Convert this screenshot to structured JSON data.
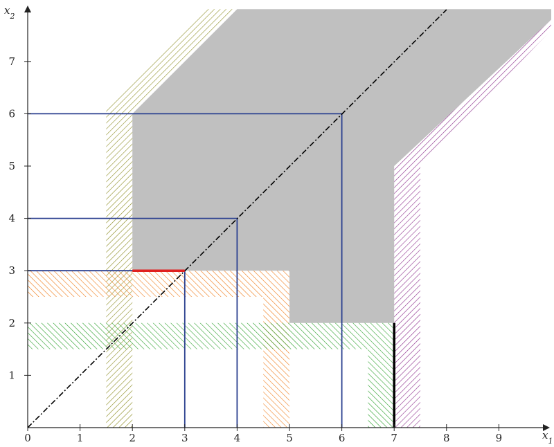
{
  "figure": {
    "axes": {
      "x_label": "x1",
      "y_label": "x2",
      "x_range": [
        0,
        10
      ],
      "y_range": [
        0,
        8
      ],
      "x_ticks": [
        0,
        1,
        2,
        3,
        4,
        5,
        6,
        7,
        8,
        9
      ],
      "y_ticks": [
        1,
        2,
        3,
        4,
        5,
        6,
        7
      ],
      "color": "#222222"
    },
    "gray_region": {
      "polygon": [
        [
          2,
          3
        ],
        [
          2,
          6
        ],
        [
          4,
          8
        ],
        [
          10,
          8
        ],
        [
          10,
          7.8
        ],
        [
          7,
          5
        ],
        [
          7,
          2
        ],
        [
          5,
          2
        ],
        [
          5,
          3
        ]
      ],
      "color": "#c0c0c0"
    },
    "hatched_bands": [
      {
        "name": "olive",
        "color": "#8a8a1e",
        "polygon": [
          [
            1.5,
            0
          ],
          [
            2,
            0
          ],
          [
            2,
            6
          ],
          [
            4,
            8
          ],
          [
            3.4,
            8
          ],
          [
            1.5,
            6.1
          ]
        ],
        "hatch_angle": 45
      },
      {
        "name": "purple",
        "color": "#8a2a8a",
        "polygon": [
          [
            7,
            0
          ],
          [
            7.5,
            0
          ],
          [
            7.5,
            5
          ],
          [
            10,
            7.6
          ],
          [
            10,
            7.8
          ],
          [
            7,
            5
          ]
        ],
        "hatch_angle": 45
      },
      {
        "name": "orange",
        "color": "#f07c1a",
        "polygon": [
          [
            0,
            3
          ],
          [
            5,
            3
          ],
          [
            5,
            0
          ],
          [
            4.5,
            0
          ],
          [
            4.5,
            2.5
          ],
          [
            0,
            2.5
          ]
        ],
        "hatch_angle": -45
      },
      {
        "name": "green",
        "color": "#2aa02a",
        "polygon": [
          [
            0,
            2
          ],
          [
            7,
            2
          ],
          [
            7,
            0
          ],
          [
            6.5,
            0
          ],
          [
            6.5,
            1.5
          ],
          [
            0,
            1.5
          ]
        ],
        "hatch_angle": -45
      }
    ],
    "blue_squares": {
      "color": "#2a3f8f",
      "sizes": [
        3,
        4,
        6
      ]
    },
    "diagonal": {
      "from": [
        0,
        0
      ],
      "to": [
        8,
        8
      ],
      "color": "#000000"
    },
    "red_segment": {
      "from": [
        2,
        3
      ],
      "to": [
        3,
        3
      ],
      "color": "#e02020"
    },
    "black_segment": {
      "from": [
        7,
        0
      ],
      "to": [
        7,
        2
      ],
      "color": "#000000"
    }
  }
}
